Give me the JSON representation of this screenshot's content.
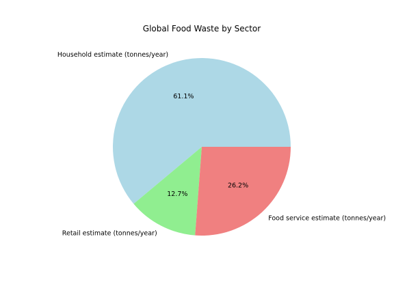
{
  "chart_data": {
    "type": "pie",
    "title": "Global Food Waste by Sector",
    "slices": [
      {
        "label": "Household estimate (tonnes/year)",
        "value": 61.1,
        "pct_label": "61.1%",
        "color": "#add8e6"
      },
      {
        "label": "Retail estimate (tonnes/year)",
        "value": 12.7,
        "pct_label": "12.7%",
        "color": "#90ee90"
      },
      {
        "label": "Food service estimate (tonnes/year)",
        "value": 26.2,
        "pct_label": "26.2%",
        "color": "#f08080"
      }
    ],
    "start_angle_deg": 0,
    "direction": "counterclockwise",
    "legend": "none"
  }
}
